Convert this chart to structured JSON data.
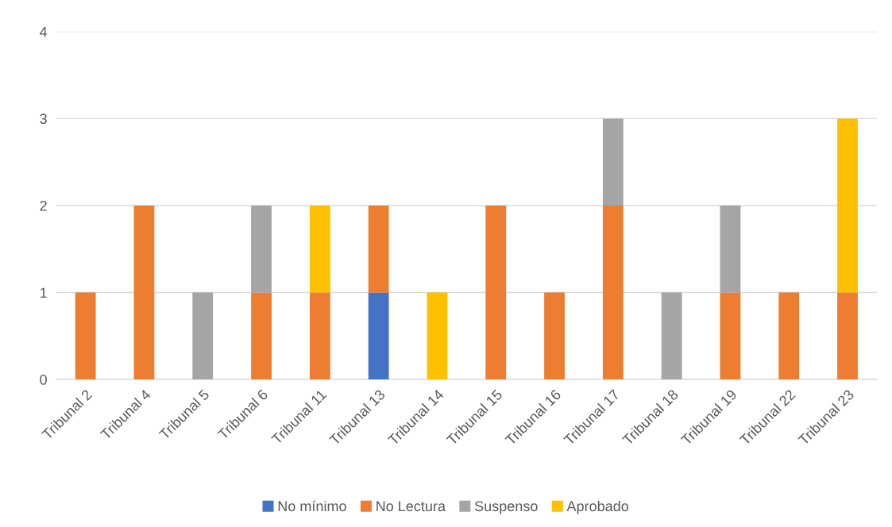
{
  "chart_data": {
    "type": "bar",
    "stacked": true,
    "categories": [
      "Tribunal 2",
      "Tribunal 4",
      "Tribunal 5",
      "Tribunal 6",
      "Tribunal 11",
      "Tribunal 13",
      "Tribunal 14",
      "Tribunal 15",
      "Tribunal 16",
      "Tribunal 17",
      "Tribunal 18",
      "Tribunal 19",
      "Tribunal 22",
      "Tribunal 23"
    ],
    "series": [
      {
        "name": "No mínimo",
        "color": "#4472c4",
        "values": [
          null,
          null,
          null,
          null,
          null,
          1,
          null,
          null,
          null,
          null,
          null,
          null,
          null,
          null
        ]
      },
      {
        "name": "No Lectura",
        "color": "#ed7d31",
        "values": [
          1,
          2,
          null,
          1,
          1,
          1,
          null,
          2,
          1,
          2,
          null,
          1,
          1,
          1
        ]
      },
      {
        "name": "Suspenso",
        "color": "#a5a5a5",
        "values": [
          null,
          null,
          1,
          1,
          null,
          null,
          null,
          null,
          null,
          1,
          1,
          1,
          null,
          null
        ]
      },
      {
        "name": "Aprobado",
        "color": "#ffc000",
        "values": [
          null,
          null,
          null,
          null,
          1,
          null,
          1,
          null,
          null,
          null,
          null,
          null,
          null,
          2
        ]
      }
    ],
    "ylim": [
      0,
      4
    ],
    "yticks": [
      0,
      1,
      2,
      3,
      4
    ],
    "grid": "y",
    "legend": "bottom"
  }
}
